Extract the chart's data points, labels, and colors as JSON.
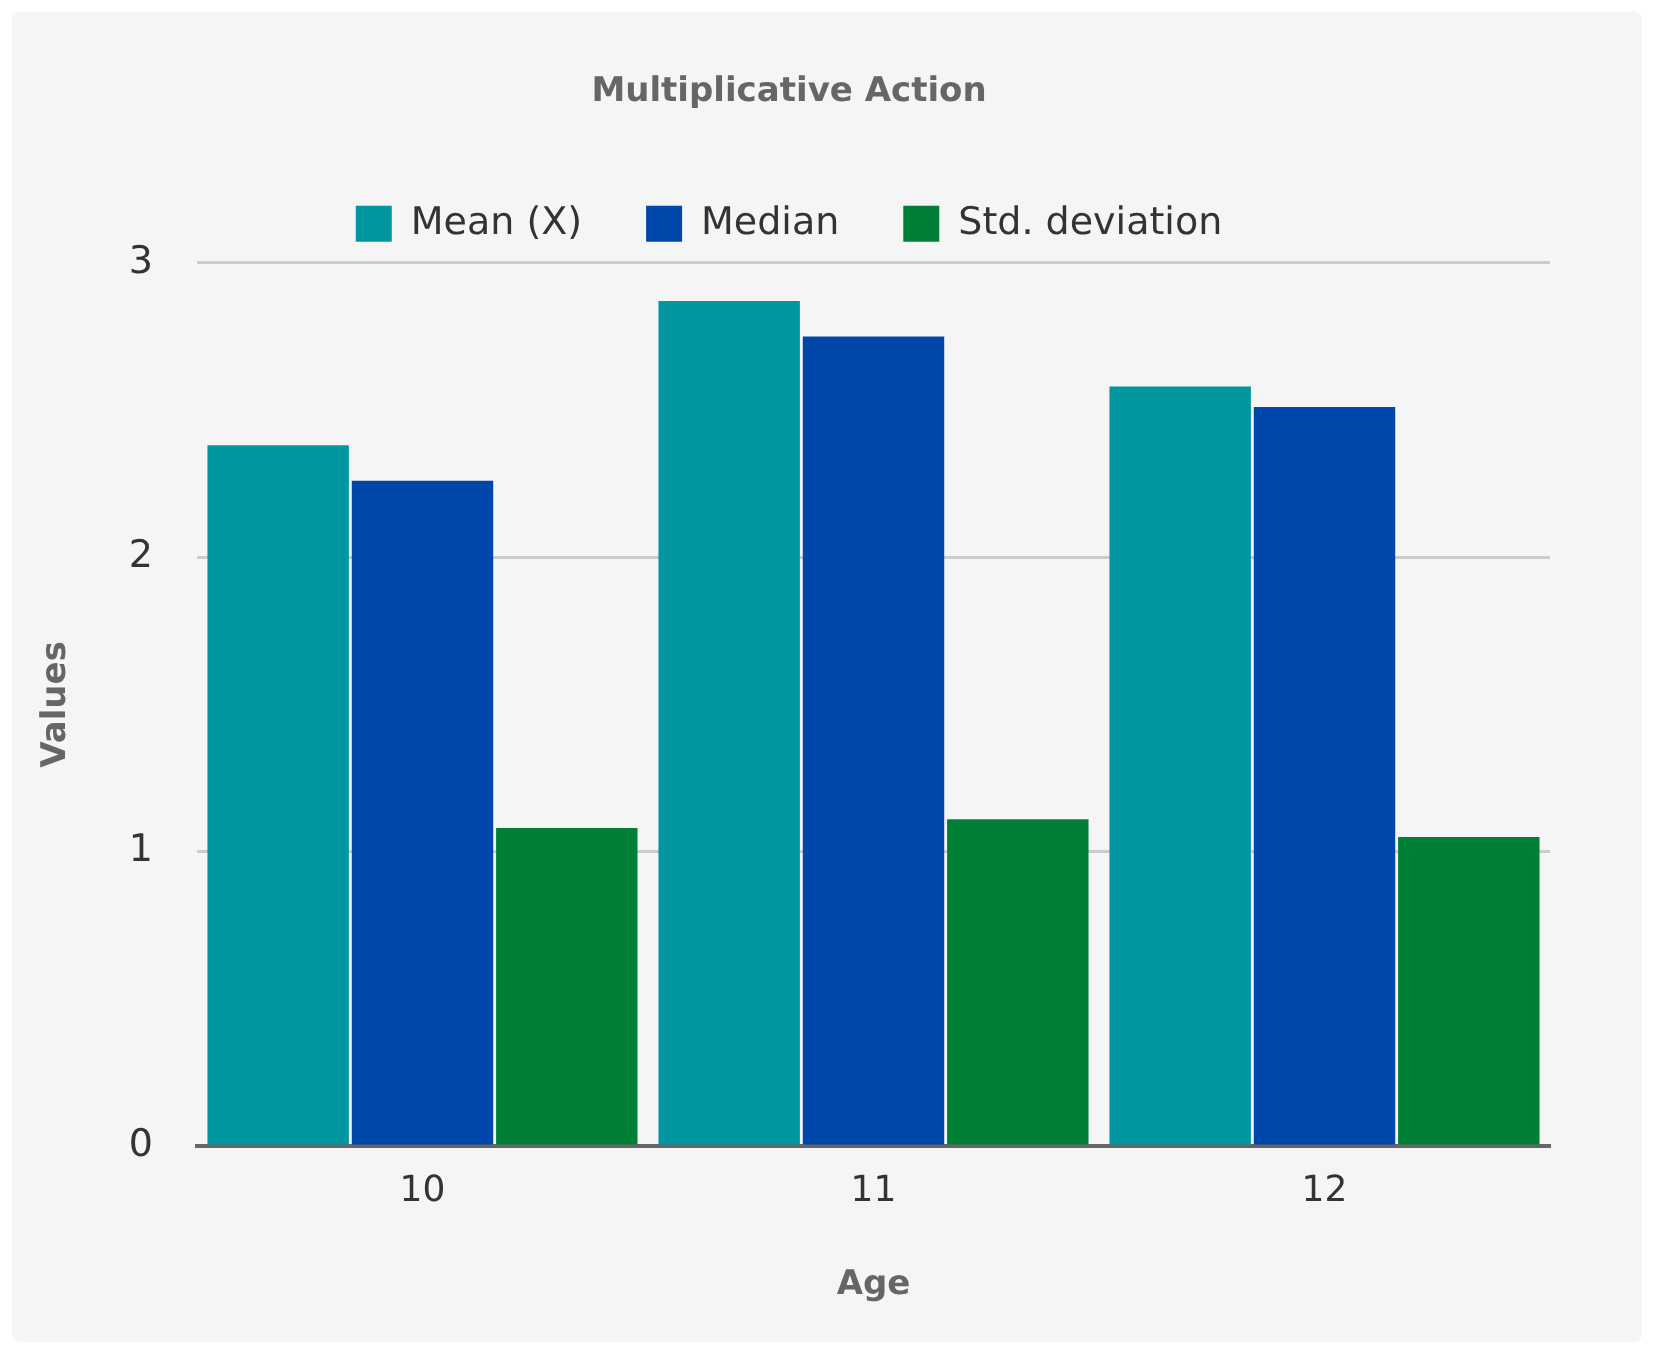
{
  "chart_data": {
    "type": "bar",
    "title": "Multiplicative Action",
    "xlabel": "Age",
    "ylabel": "Values",
    "categories": [
      "10",
      "11",
      "12"
    ],
    "series": [
      {
        "name": "Mean (X)",
        "color": "#0097a0",
        "values": [
          2.38,
          2.87,
          2.58
        ]
      },
      {
        "name": "Median",
        "color": "#0047ab",
        "values": [
          2.26,
          2.75,
          2.51
        ]
      },
      {
        "name": "Std. deviation",
        "color": "#008037",
        "values": [
          1.08,
          1.11,
          1.05
        ]
      }
    ],
    "ylim": [
      0,
      3
    ],
    "yticks": [
      0,
      1,
      2,
      3
    ],
    "grid": "y",
    "legend": "top"
  }
}
